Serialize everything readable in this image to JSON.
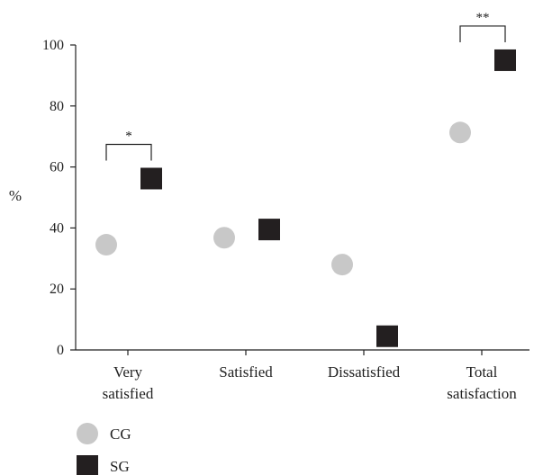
{
  "chart_data": {
    "type": "scatter",
    "categories": [
      [
        "Very",
        "satisfied"
      ],
      [
        "Satisfied"
      ],
      [
        "Dissatisfied"
      ],
      [
        "Total",
        "satisfaction"
      ]
    ],
    "series": [
      {
        "name": "CG",
        "values": [
          34.5,
          36.8,
          28.0,
          71.3
        ],
        "color": "#c8c8c8",
        "marker": "circle"
      },
      {
        "name": "SG",
        "values": [
          56.2,
          39.5,
          4.5,
          95.0
        ],
        "color": "#231f20",
        "marker": "square"
      }
    ],
    "ylabel": "%",
    "ylim": [
      0,
      100
    ],
    "yticks": [
      0,
      20,
      40,
      60,
      80,
      100
    ],
    "legend_position": "bottom-left",
    "significance": [
      {
        "category_index": 0,
        "label": "*"
      },
      {
        "category_index": 3,
        "label": "**"
      }
    ]
  }
}
